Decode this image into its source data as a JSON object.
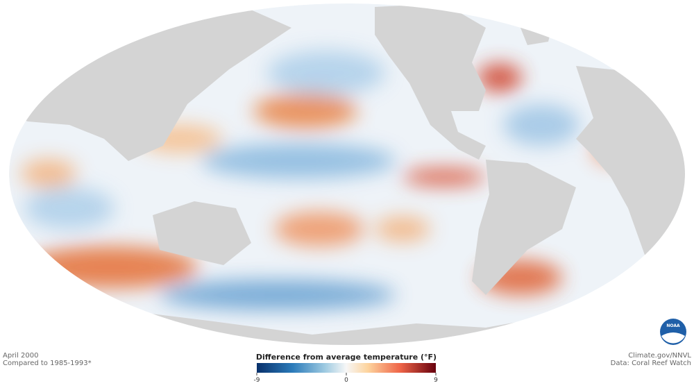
{
  "header": {
    "date": "April 2000",
    "baseline": "Compared to 1985-1993*"
  },
  "credits": {
    "site": "Climate.gov/NNVL",
    "source": "Data: Coral Reef Watch"
  },
  "logo": "NOAA",
  "legend": {
    "title": "Difference from average temperature (°F)",
    "range": [
      -9,
      9
    ],
    "ticks": [
      -9,
      0,
      9
    ]
  }
}
